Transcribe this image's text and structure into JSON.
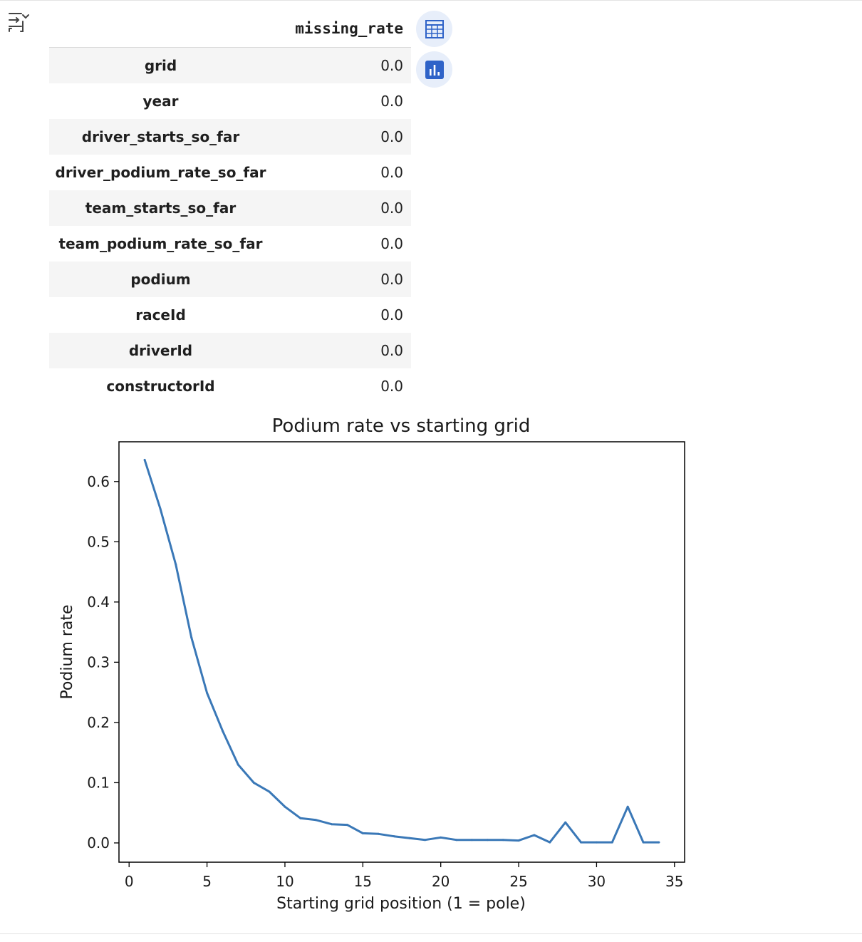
{
  "toolbar": {
    "output_toggle_icon": "collapse-output-icon",
    "table_view_icon": "table-grid-icon",
    "chart_view_icon": "bar-chart-icon",
    "accent_color": "#2f63c8",
    "button_bg": "#e7eefa"
  },
  "table": {
    "column_header": "missing_rate",
    "rows": [
      {
        "label": "grid",
        "value": "0.0"
      },
      {
        "label": "year",
        "value": "0.0"
      },
      {
        "label": "driver_starts_so_far",
        "value": "0.0"
      },
      {
        "label": "driver_podium_rate_so_far",
        "value": "0.0"
      },
      {
        "label": "team_starts_so_far",
        "value": "0.0"
      },
      {
        "label": "team_podium_rate_so_far",
        "value": "0.0"
      },
      {
        "label": "podium",
        "value": "0.0"
      },
      {
        "label": "raceId",
        "value": "0.0"
      },
      {
        "label": "driverId",
        "value": "0.0"
      },
      {
        "label": "constructorId",
        "value": "0.0"
      }
    ]
  },
  "chart_data": {
    "type": "line",
    "title": "Podium rate vs starting grid",
    "xlabel": "Starting grid position (1 = pole)",
    "ylabel": "Podium rate",
    "xlim": [
      -0.65,
      35.65
    ],
    "ylim": [
      -0.032,
      0.666
    ],
    "xticks": [
      "0",
      "5",
      "10",
      "15",
      "20",
      "25",
      "30",
      "35"
    ],
    "yticks": [
      "0.0",
      "0.1",
      "0.2",
      "0.3",
      "0.4",
      "0.5",
      "0.6"
    ],
    "grid": false,
    "line_color": "#3a78b7",
    "x": [
      1,
      2,
      3,
      4,
      5,
      6,
      7,
      8,
      9,
      10,
      11,
      12,
      13,
      14,
      15,
      16,
      17,
      18,
      19,
      20,
      21,
      22,
      23,
      24,
      25,
      26,
      27,
      28,
      29,
      30,
      31,
      32,
      33,
      34
    ],
    "y": [
      0.636,
      0.555,
      0.462,
      0.341,
      0.249,
      0.186,
      0.13,
      0.1,
      0.085,
      0.06,
      0.041,
      0.038,
      0.031,
      0.03,
      0.016,
      0.015,
      0.011,
      0.008,
      0.005,
      0.009,
      0.005,
      0.005,
      0.005,
      0.005,
      0.004,
      0.013,
      0.001,
      0.034,
      0.001,
      0.001,
      0.001,
      0.06,
      0.001,
      0.001
    ]
  }
}
